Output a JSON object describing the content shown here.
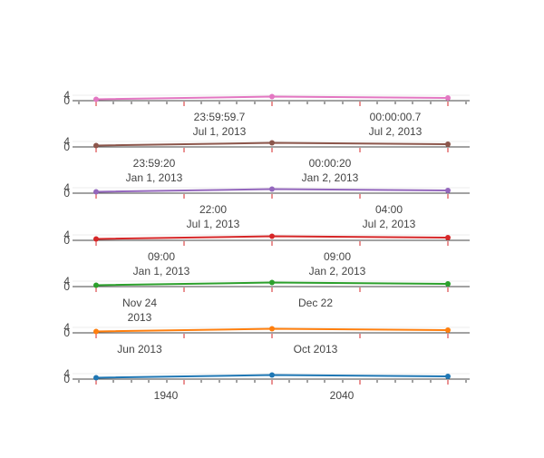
{
  "chart_data": [
    {
      "type": "line",
      "color": "#e377c2",
      "x": [
        "2013-07-01 23:59:59.5",
        "2013-07-02 00:00:00.0",
        "2013-07-02 00:00:00.5"
      ],
      "values": [
        1,
        3,
        2
      ],
      "ylim": [
        0,
        6
      ],
      "yticks": [
        "0",
        "4"
      ],
      "x_tick_labels": [
        {
          "line1": "23:59:59.7",
          "line2": "Jul 1, 2013"
        },
        {
          "line1": "00:00:00.7",
          "line2": "Jul 2, 2013"
        }
      ]
    },
    {
      "type": "line",
      "color": "#8c564b",
      "x": [
        "2013-01-01 23:59:00",
        "2013-01-02 00:00:00",
        "2013-01-02 00:01:00"
      ],
      "values": [
        1,
        3,
        2
      ],
      "ylim": [
        0,
        6
      ],
      "yticks": [
        "0",
        "4"
      ],
      "x_tick_labels": [
        {
          "line1": "23:59:20",
          "line2": "Jan 1, 2013"
        },
        {
          "line1": "00:00:20",
          "line2": "Jan 2, 2013"
        }
      ]
    },
    {
      "type": "line",
      "color": "#9467bd",
      "x": [
        "2013-07-01 20:00",
        "2013-07-02 00:00",
        "2013-07-02 04:00"
      ],
      "values": [
        1,
        3,
        2
      ],
      "ylim": [
        0,
        6
      ],
      "yticks": [
        "0",
        "4"
      ],
      "x_tick_labels": [
        {
          "line1": "22:00",
          "line2": "Jul 1, 2013"
        },
        {
          "line1": "04:00",
          "line2": "Jul 2, 2013"
        }
      ]
    },
    {
      "type": "line",
      "color": "#d62728",
      "x": [
        "2013-01-01",
        "2013-01-02",
        "2013-01-03"
      ],
      "values": [
        1,
        3,
        2
      ],
      "ylim": [
        0,
        6
      ],
      "yticks": [
        "0",
        "4"
      ],
      "x_tick_labels": [
        {
          "line1": "09:00",
          "line2": "Jan 1, 2013"
        },
        {
          "line1": "09:00",
          "line2": "Jan 2, 2013"
        }
      ]
    },
    {
      "type": "line",
      "color": "#2ca02c",
      "x": [
        "2013-11-01",
        "2013-12-01",
        "2014-01-01"
      ],
      "values": [
        1,
        3,
        2
      ],
      "ylim": [
        0,
        6
      ],
      "yticks": [
        "0",
        "4"
      ],
      "x_tick_labels": [
        {
          "line1": "Nov 24",
          "line2": "2013"
        },
        {
          "line1": "Dec 22",
          "line2": ""
        }
      ]
    },
    {
      "type": "line",
      "color": "#ff7f0e",
      "x": [
        "2013-01-01",
        "2013-07-01",
        "2014-01-01"
      ],
      "values": [
        1,
        3,
        2
      ],
      "ylim": [
        0,
        6
      ],
      "yticks": [
        "0",
        "4"
      ],
      "x_tick_labels": [
        {
          "line1": "Jun 2013",
          "line2": ""
        },
        {
          "line1": "Oct 2013",
          "line2": ""
        }
      ]
    },
    {
      "type": "line",
      "color": "#1f77b4",
      "x": [
        "1913",
        "2013",
        "2113"
      ],
      "values": [
        1,
        3,
        2
      ],
      "ylim": [
        0,
        6
      ],
      "yticks": [
        "0",
        "4"
      ],
      "x_tick_labels": [
        {
          "line1": "1940",
          "line2": ""
        },
        {
          "line1": "2040",
          "line2": ""
        }
      ]
    }
  ],
  "style": {
    "axis_color": "#444444",
    "grid_color": "#eeeeee",
    "tick_red": "#d62728"
  }
}
